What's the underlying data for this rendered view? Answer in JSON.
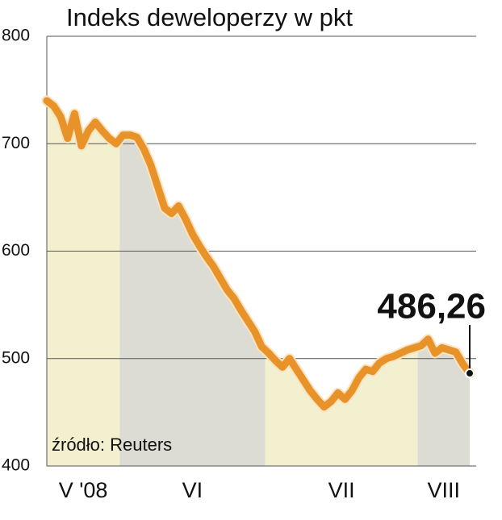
{
  "chart_data": {
    "type": "line",
    "title": "Indeks deweloperzy w pkt",
    "source": "źródło: Reuters",
    "color": "#e8922a",
    "ylim": [
      400,
      800
    ],
    "yticks": [
      400,
      500,
      600,
      700,
      800
    ],
    "grid": true,
    "months": [
      {
        "name": "V '08",
        "color": "#f3f0cf",
        "values": [
          740,
          735,
          725,
          705,
          728,
          698,
          712,
          720,
          712,
          705,
          700
        ]
      },
      {
        "name": "VI",
        "color": "#dcdcd4",
        "values": [
          708,
          708,
          706,
          695,
          680,
          660,
          640,
          635,
          642,
          630,
          616,
          605,
          595,
          586,
          575,
          564,
          556,
          545,
          535,
          525,
          511
        ]
      },
      {
        "name": "VII",
        "color": "#f3f0cf",
        "values": [
          505,
          498,
          492,
          500,
          490,
          480,
          470,
          462,
          455,
          460,
          468,
          462,
          470,
          482,
          490,
          488,
          496,
          500,
          502,
          505,
          508,
          510
        ]
      },
      {
        "name": "VIII",
        "color": "#dcdcd4",
        "values": [
          512,
          518,
          505,
          510,
          508,
          506,
          495,
          486.26
        ],
        "value_labels": [
          null,
          null,
          null,
          null,
          null,
          null,
          null,
          "486,26"
        ]
      }
    ]
  }
}
